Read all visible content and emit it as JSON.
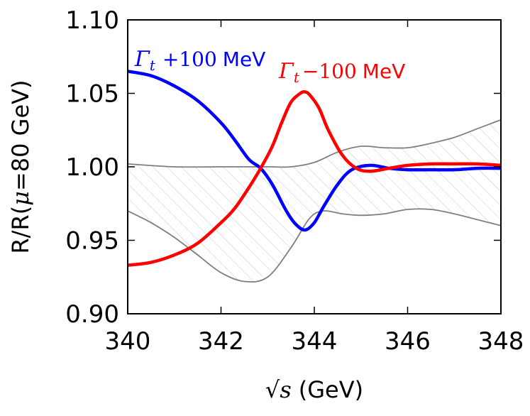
{
  "chart_data": {
    "type": "line",
    "xlabel_symbol": "√s",
    "xlabel_unit": "(GeV)",
    "ylabel_left": "R/R(",
    "ylabel_mu": "μ",
    "ylabel_right": "=80 GeV)",
    "xlim": [
      340,
      348
    ],
    "ylim": [
      0.9,
      1.1
    ],
    "xticks": [
      "340",
      "342",
      "344",
      "346",
      "348"
    ],
    "yticks": [
      "0.90",
      "0.95",
      "1.00",
      "1.05",
      "1.10"
    ],
    "annotations": {
      "plus": {
        "symbol": "Γ",
        "sub": "t",
        "text": "+100",
        "unit": "MeV",
        "color": "#0000ff"
      },
      "minus": {
        "symbol": "Γ",
        "sub": "t",
        "text": "−100",
        "unit": "MeV",
        "color": "#ff0000"
      }
    },
    "band": {
      "color": "#7f7f7f",
      "upper": [
        [
          340,
          1.002
        ],
        [
          341,
          1.0
        ],
        [
          342,
          1.0
        ],
        [
          343,
          1.0
        ],
        [
          343.5,
          1.0
        ],
        [
          344,
          1.003
        ],
        [
          344.5,
          1.01
        ],
        [
          345,
          1.014
        ],
        [
          345.5,
          1.013
        ],
        [
          346,
          1.013
        ],
        [
          346.5,
          1.016
        ],
        [
          347,
          1.02
        ],
        [
          347.5,
          1.026
        ],
        [
          348,
          1.032
        ]
      ],
      "lower": [
        [
          340,
          0.97
        ],
        [
          340.5,
          0.962
        ],
        [
          341,
          0.952
        ],
        [
          341.5,
          0.94
        ],
        [
          342,
          0.928
        ],
        [
          342.5,
          0.922
        ],
        [
          343,
          0.925
        ],
        [
          343.5,
          0.945
        ],
        [
          343.9,
          0.965
        ],
        [
          344.2,
          0.97
        ],
        [
          344.6,
          0.968
        ],
        [
          345,
          0.967
        ],
        [
          345.5,
          0.968
        ],
        [
          346,
          0.971
        ],
        [
          346.5,
          0.971
        ],
        [
          347,
          0.968
        ],
        [
          347.5,
          0.964
        ],
        [
          348,
          0.96
        ]
      ]
    },
    "series": [
      {
        "name": "Γt +100 MeV",
        "color": "#0000ff",
        "x": [
          340,
          340.5,
          341,
          341.5,
          342,
          342.3,
          342.6,
          342.85,
          343.1,
          343.4,
          343.6,
          343.8,
          344.0,
          344.2,
          344.5,
          344.8,
          345.2,
          345.6,
          346,
          346.5,
          347,
          347.5,
          348
        ],
        "y": [
          1.065,
          1.062,
          1.055,
          1.045,
          1.03,
          1.018,
          1.005,
          0.999,
          0.988,
          0.97,
          0.961,
          0.957,
          0.962,
          0.973,
          0.988,
          0.998,
          1.001,
          0.999,
          0.998,
          0.998,
          0.998,
          0.999,
          0.999
        ]
      },
      {
        "name": "Γt −100 MeV",
        "color": "#ff0000",
        "x": [
          340,
          340.5,
          341,
          341.5,
          342,
          342.3,
          342.6,
          342.85,
          343.1,
          343.3,
          343.5,
          343.7,
          343.8,
          343.9,
          344.1,
          344.3,
          344.6,
          344.9,
          345.2,
          345.6,
          346,
          346.5,
          347,
          347.5,
          348
        ],
        "y": [
          0.933,
          0.935,
          0.94,
          0.948,
          0.962,
          0.972,
          0.986,
          0.999,
          1.014,
          1.03,
          1.044,
          1.05,
          1.051,
          1.049,
          1.04,
          1.025,
          1.008,
          0.999,
          0.997,
          0.999,
          1.001,
          1.002,
          1.002,
          1.002,
          1.001
        ]
      }
    ]
  }
}
